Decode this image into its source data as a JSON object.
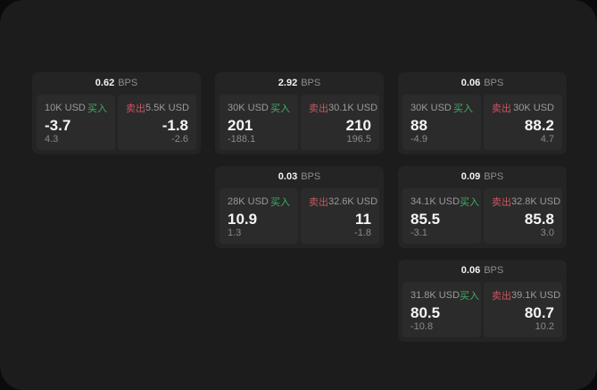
{
  "app": {
    "background_outer": "#0b0b0b",
    "background_container": "#1c1c1c"
  },
  "labels": {
    "bps": "BPS",
    "buy": "买入",
    "sell": "卖出"
  },
  "colors": {
    "buy": "#3fae68",
    "sell": "#cb5460"
  },
  "cards": [
    {
      "bps": "0.62",
      "buy": {
        "notional": "10K USD",
        "price": "-3.7",
        "change": "4.3"
      },
      "sell": {
        "notional": "5.5K USD",
        "price": "-1.8",
        "change": "-2.6"
      }
    },
    {
      "bps": "2.92",
      "buy": {
        "notional": "30K USD",
        "price": "201",
        "change": "-188.1"
      },
      "sell": {
        "notional": "30.1K USD",
        "price": "210",
        "change": "196.5"
      }
    },
    {
      "bps": "0.06",
      "buy": {
        "notional": "30K USD",
        "price": "88",
        "change": "-4.9"
      },
      "sell": {
        "notional": "30K USD",
        "price": "88.2",
        "change": "4.7"
      }
    },
    {
      "bps": "0.03",
      "buy": {
        "notional": "28K USD",
        "price": "10.9",
        "change": "1.3"
      },
      "sell": {
        "notional": "32.6K USD",
        "price": "11",
        "change": "-1.8"
      }
    },
    {
      "bps": "0.09",
      "buy": {
        "notional": "34.1K USD",
        "price": "85.5",
        "change": "-3.1"
      },
      "sell": {
        "notional": "32.8K USD",
        "price": "85.8",
        "change": "3.0"
      }
    },
    {
      "bps": "0.06",
      "buy": {
        "notional": "31.8K USD",
        "price": "80.5",
        "change": "-10.8"
      },
      "sell": {
        "notional": "39.1K USD",
        "price": "80.7",
        "change": "10.2"
      }
    }
  ]
}
